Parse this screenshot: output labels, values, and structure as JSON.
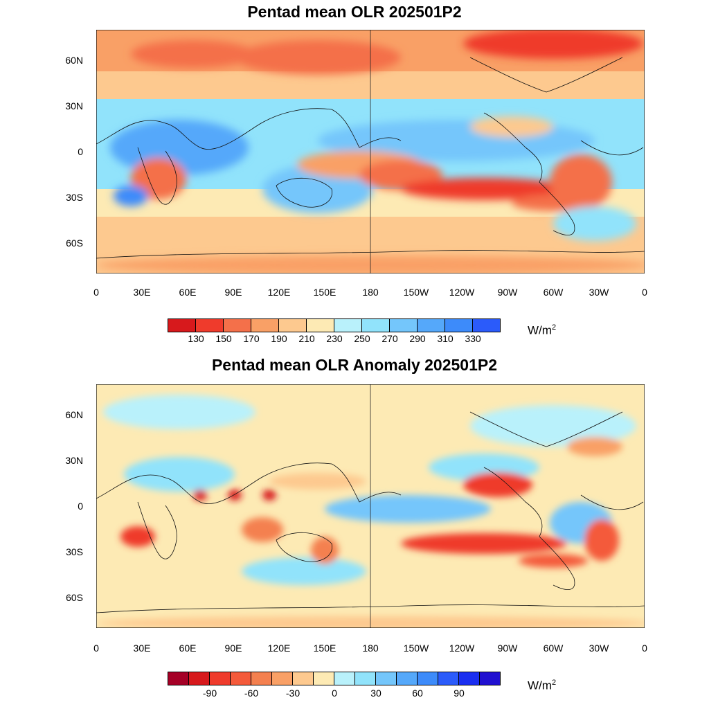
{
  "panels": [
    {
      "title": "Pentad mean OLR 202501P2",
      "lat_labels": [
        "60N",
        "30N",
        "0",
        "30S",
        "60S"
      ],
      "lon_labels": [
        "0",
        "30E",
        "60E",
        "90E",
        "120E",
        "150E",
        "180",
        "150W",
        "120W",
        "90W",
        "60W",
        "30W",
        "0"
      ],
      "colorbar": {
        "colors": [
          "#d7191c",
          "#ef3b2c",
          "#f4704a",
          "#f9a066",
          "#fdc98f",
          "#fdeab4",
          "#b9f1fb",
          "#91e3fb",
          "#74c6fb",
          "#55a8fa",
          "#3d8bfa",
          "#2b5bfa"
        ],
        "labels": [
          "130",
          "150",
          "170",
          "190",
          "210",
          "230",
          "250",
          "270",
          "290",
          "310",
          "330"
        ],
        "unit": "W/m",
        "unit_exp": "2"
      }
    },
    {
      "title": "Pentad mean OLR Anomaly 202501P2",
      "lat_labels": [
        "60N",
        "30N",
        "0",
        "30S",
        "60S"
      ],
      "lon_labels": [
        "0",
        "30E",
        "60E",
        "90E",
        "120E",
        "150E",
        "180",
        "150W",
        "120W",
        "90W",
        "60W",
        "30W",
        "0"
      ],
      "colorbar": {
        "colors": [
          "#a50026",
          "#d7191c",
          "#ef3b2c",
          "#f45a3a",
          "#f4804f",
          "#f9a066",
          "#fdc98f",
          "#fdeab4",
          "#b9f1fb",
          "#91e3fb",
          "#74c6fb",
          "#55a8fa",
          "#3d8bfa",
          "#2b5bfa",
          "#1a2ef0",
          "#2010d0"
        ],
        "labels": [
          "-90",
          "-60",
          "-30",
          "0",
          "30",
          "60",
          "90"
        ],
        "unit": "W/m",
        "unit_exp": "2"
      }
    }
  ]
}
